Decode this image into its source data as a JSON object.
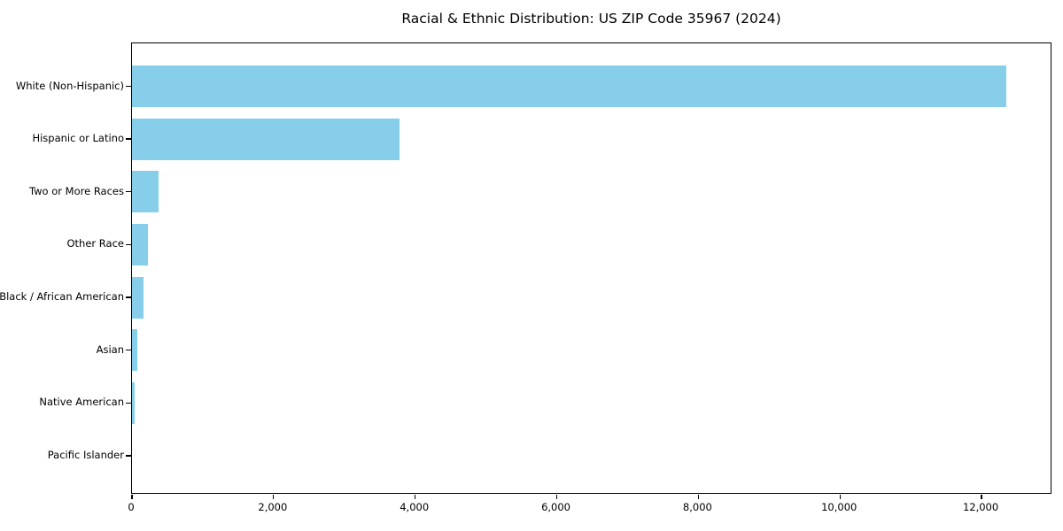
{
  "title": "Racial & Ethnic Distribution: US ZIP Code 35967 (2024)",
  "chart_data": {
    "type": "bar",
    "orientation": "horizontal",
    "title": "Racial & Ethnic Distribution: US ZIP Code 35967 (2024)",
    "categories": [
      "White (Non-Hispanic)",
      "Hispanic or Latino",
      "Two or More Races",
      "Other Race",
      "Black / African American",
      "Asian",
      "Native American",
      "Pacific Islander"
    ],
    "values": [
      12350,
      3775,
      370,
      225,
      160,
      70,
      35,
      0
    ],
    "xlabel": "",
    "ylabel": "",
    "xlim": [
      0,
      13000
    ],
    "xticks": [
      0,
      2000,
      4000,
      6000,
      8000,
      10000,
      12000
    ],
    "xtick_labels": [
      "0",
      "2,000",
      "4,000",
      "6,000",
      "8,000",
      "10,000",
      "12,000"
    ],
    "bar_color": "#87CEEB",
    "background_color": "#ffffff",
    "spine_color": "#000000",
    "grid": false,
    "legend": null
  }
}
